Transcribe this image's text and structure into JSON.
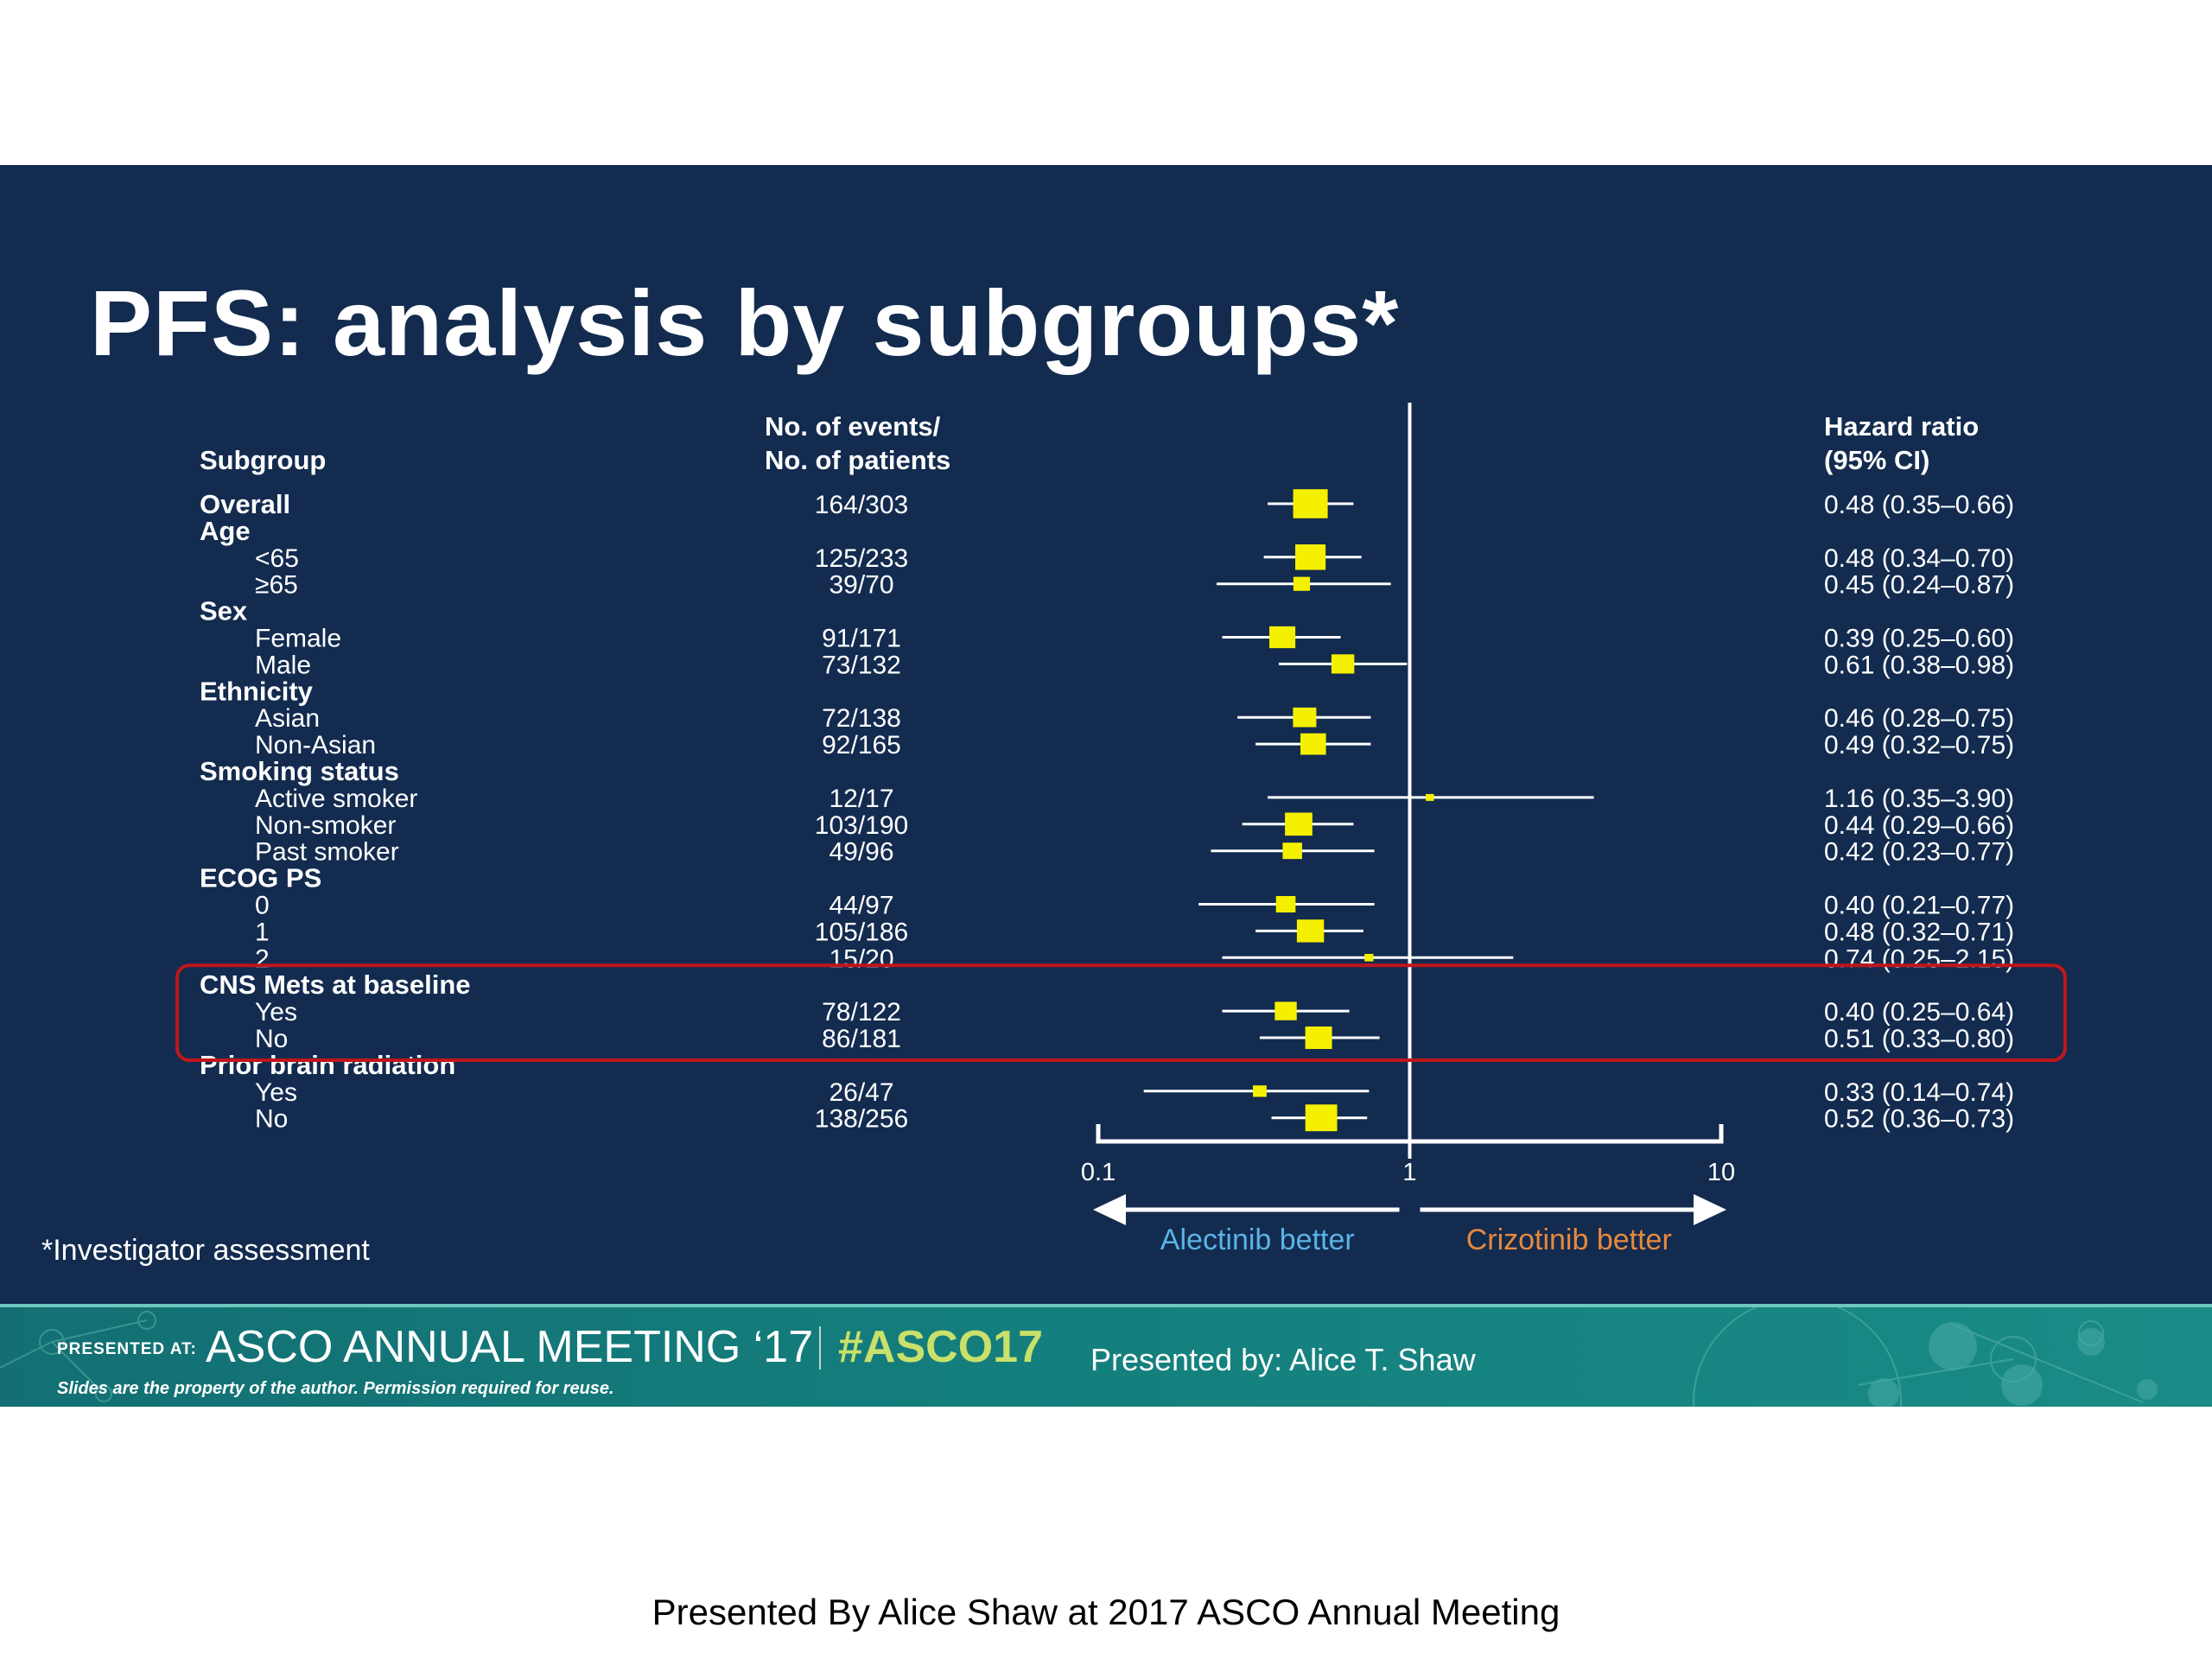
{
  "slide": {
    "title": "PFS: analysis by subgroups*",
    "footnote": "*Investigator assessment"
  },
  "banner": {
    "presented_at": "PRESENTED AT:",
    "meeting": "ASCO ANNUAL MEETING ‘17",
    "hashtag": "#ASCO17",
    "presenter": "Presented by:  Alice T. Shaw",
    "disclaimer": "Slides are the property of the author. Permission required for reuse."
  },
  "caption": "Presented By Alice Shaw at 2017 ASCO Annual Meeting",
  "colors": {
    "slide_background": "#132b4f",
    "marker": "#f5f000",
    "highlight_box": "#c0161c",
    "favours_left": "#5ab4e6",
    "favours_right": "#e8893c",
    "banner": "#14807e"
  },
  "chart_data": {
    "type": "forest",
    "column_headers": {
      "subgroup": "Subgroup",
      "events": [
        "No. of events/",
        "No. of patients"
      ],
      "hr": [
        "Hazard ratio",
        "(95% CI)"
      ]
    },
    "x_scale": "log",
    "xlim": [
      0.1,
      10
    ],
    "x_ticks": [
      "0.1",
      "1",
      "10"
    ],
    "reference_line": 1,
    "favours_left": "Alectinib better",
    "favours_right": "Crizotinib better",
    "rows": [
      {
        "label": "Overall",
        "header": true,
        "events": "164/303",
        "hr": 0.48,
        "lo": 0.35,
        "hi": 0.66,
        "hr_text": "0.48 (0.35–0.66)"
      },
      {
        "label": "Age",
        "header": true
      },
      {
        "label": "<65",
        "events": "125/233",
        "hr": 0.48,
        "lo": 0.34,
        "hi": 0.7,
        "hr_text": "0.48 (0.34–0.70)"
      },
      {
        "label": "≥65",
        "events": "39/70",
        "hr": 0.45,
        "lo": 0.24,
        "hi": 0.87,
        "hr_text": "0.45 (0.24–0.87)"
      },
      {
        "label": "Sex",
        "header": true
      },
      {
        "label": "Female",
        "events": "91/171",
        "hr": 0.39,
        "lo": 0.25,
        "hi": 0.6,
        "hr_text": "0.39 (0.25–0.60)"
      },
      {
        "label": "Male",
        "events": "73/132",
        "hr": 0.61,
        "lo": 0.38,
        "hi": 0.98,
        "hr_text": "0.61 (0.38–0.98)"
      },
      {
        "label": "Ethnicity",
        "header": true
      },
      {
        "label": "Asian",
        "events": "72/138",
        "hr": 0.46,
        "lo": 0.28,
        "hi": 0.75,
        "hr_text": "0.46 (0.28–0.75)"
      },
      {
        "label": "Non-Asian",
        "events": "92/165",
        "hr": 0.49,
        "lo": 0.32,
        "hi": 0.75,
        "hr_text": "0.49 (0.32–0.75)"
      },
      {
        "label": "Smoking status",
        "header": true
      },
      {
        "label": "Active smoker",
        "events": "12/17",
        "hr": 1.16,
        "lo": 0.35,
        "hi": 3.9,
        "hr_text": "1.16 (0.35–3.90)"
      },
      {
        "label": "Non-smoker",
        "events": "103/190",
        "hr": 0.44,
        "lo": 0.29,
        "hi": 0.66,
        "hr_text": "0.44 (0.29–0.66)"
      },
      {
        "label": "Past smoker",
        "events": "49/96",
        "hr": 0.42,
        "lo": 0.23,
        "hi": 0.77,
        "hr_text": "0.42 (0.23–0.77)"
      },
      {
        "label": "ECOG PS",
        "header": true
      },
      {
        "label": "0",
        "events": "44/97",
        "hr": 0.4,
        "lo": 0.21,
        "hi": 0.77,
        "hr_text": "0.40 (0.21–0.77)"
      },
      {
        "label": "1",
        "events": "105/186",
        "hr": 0.48,
        "lo": 0.32,
        "hi": 0.71,
        "hr_text": "0.48 (0.32–0.71)"
      },
      {
        "label": "2",
        "events": "15/20",
        "hr": 0.74,
        "lo": 0.25,
        "hi": 2.15,
        "hr_text": "0.74 (0.25–2.15)"
      },
      {
        "label": "CNS Mets at baseline",
        "header": true,
        "highlight": true
      },
      {
        "label": "Yes",
        "events": "78/122",
        "hr": 0.4,
        "lo": 0.25,
        "hi": 0.64,
        "hr_text": "0.40 (0.25–0.64)",
        "highlight": true
      },
      {
        "label": "No",
        "events": "86/181",
        "hr": 0.51,
        "lo": 0.33,
        "hi": 0.8,
        "hr_text": "0.51 (0.33–0.80)",
        "highlight": true
      },
      {
        "label": "Prior brain radiation",
        "header": true
      },
      {
        "label": "Yes",
        "events": "26/47",
        "hr": 0.33,
        "lo": 0.14,
        "hi": 0.74,
        "hr_text": "0.33 (0.14–0.74)"
      },
      {
        "label": "No",
        "events": "138/256",
        "hr": 0.52,
        "lo": 0.36,
        "hi": 0.73,
        "hr_text": "0.52 (0.36–0.73)"
      }
    ]
  }
}
